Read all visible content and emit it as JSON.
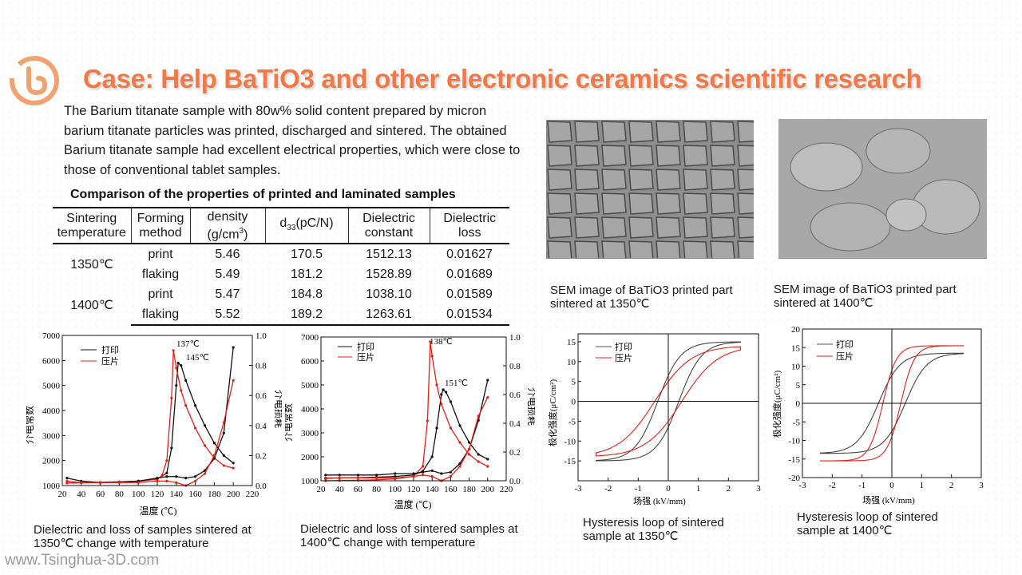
{
  "title": "Case: Help BaTiO3 and other electronic ceramics scientific research",
  "intro": "The Barium titanate sample with 80w% solid content prepared by micron barium titanate particles was printed, discharged and sintered. The obtained Barium titanate sample had excellent electrical properties, which were close to those of conventional tablet samples.",
  "table": {
    "caption": "Comparison of the properties of printed and laminated samples",
    "headers": {
      "h1a": "Sintering",
      "h1b": "temperature",
      "h2a": "Forming",
      "h2b": "method",
      "h3a": "density",
      "h3b": "(g/cm",
      "h3c": "3",
      "h3d": ")",
      "h4a": "d",
      "h4b": "33",
      "h4c": "(pC/N)",
      "h5a": "Dielectric",
      "h5b": "constant",
      "h6a": "Dielectric",
      "h6b": "loss"
    },
    "groups": [
      {
        "temp": "1350℃",
        "rows": [
          {
            "method": "print",
            "density": "5.46",
            "d33": "170.5",
            "constant": "1512.13",
            "loss": "0.01627"
          },
          {
            "method": "flaking",
            "density": "5.49",
            "d33": "181.2",
            "constant": "1528.89",
            "loss": "0.01689"
          }
        ]
      },
      {
        "temp": "1400℃",
        "rows": [
          {
            "method": "print",
            "density": "5.47",
            "d33": "184.8",
            "constant": "1038.10",
            "loss": "0.01589"
          },
          {
            "method": "flaking",
            "density": "5.52",
            "d33": "189.2",
            "constant": "1263.61",
            "loss": "0.01534"
          }
        ]
      }
    ]
  },
  "sem": {
    "cap1350": "SEM image of BaTiO3 printed part sintered at 1350℃",
    "cap1400": "SEM image of BaTiO3 printed part sintered at 1400℃"
  },
  "charts": {
    "diel_1350": {
      "legend_print": "打印",
      "legend_flake": "压片",
      "ylabel_left": "介电常数",
      "ylabel_right": "介电损耗",
      "xlabel": "温度 (℃)",
      "peak1": "137℃",
      "peak2": "145℃",
      "xticks": [
        "20",
        "40",
        "60",
        "80",
        "100",
        "120",
        "140",
        "160",
        "180",
        "200",
        "220"
      ],
      "yticks_left": [
        "1000",
        "2000",
        "3000",
        "4000",
        "5000",
        "6000",
        "7000"
      ],
      "yticks_right": [
        "0.0",
        "0.2",
        "0.4",
        "0.6",
        "0.8",
        "1.0"
      ],
      "caption": "Dielectric and loss of samples sintered at 1350℃ change with temperature"
    },
    "diel_1400": {
      "legend_print": "打印",
      "legend_flake": "压片",
      "ylabel_left": "介电常数",
      "ylabel_right": "介电损耗",
      "xlabel": "温度 (℃)",
      "peak1": "138℃",
      "peak2": "151℃",
      "xticks": [
        "20",
        "40",
        "60",
        "80",
        "100",
        "120",
        "140",
        "160",
        "180",
        "200",
        "220"
      ],
      "yticks_left": [
        "1000",
        "2000",
        "3000",
        "4000",
        "5000",
        "6000",
        "7000"
      ],
      "yticks_right": [
        "0.0",
        "0.2",
        "0.4",
        "0.6",
        "0.8",
        "1.0"
      ],
      "caption": "Dielectric and loss of sintered samples at 1400℃ change with temperature"
    },
    "hyst_1350": {
      "legend_print": "打印",
      "legend_flake": "压片",
      "ylabel": "极化强度(μC/cm²)",
      "xlabel": "场强 (kV/mm)",
      "xticks": [
        "-3",
        "-2",
        "-1",
        "0",
        "1",
        "2",
        "3"
      ],
      "yticks": [
        "-15",
        "-10",
        "-5",
        "0",
        "5",
        "10",
        "15"
      ],
      "caption": "Hysteresis loop of sintered sample at 1350℃"
    },
    "hyst_1400": {
      "legend_print": "打印",
      "legend_flake": "压片",
      "ylabel": "极化强度(μC/cm²)",
      "xlabel": "场强 (kV/mm)",
      "xticks": [
        "-3",
        "-2",
        "-1",
        "0",
        "1",
        "2",
        "3"
      ],
      "yticks": [
        "-20",
        "-15",
        "-10",
        "-5",
        "0",
        "5",
        "10",
        "15",
        "20"
      ],
      "caption": "Hysteresis loop of sintered sample at 1400℃"
    }
  },
  "footer": "www.Tsinghua-3D.com",
  "colors": {
    "accent": "#ef7a47",
    "print": "#111111",
    "flake": "#e0201b"
  },
  "chart_data": [
    {
      "type": "line",
      "xlim": [
        20,
        220
      ],
      "ylim": [
        1000,
        7000
      ],
      "y2lim": [
        0.0,
        1.0
      ],
      "series": [
        {
          "name": "打印",
          "axis": "left",
          "x": [
            25,
            40,
            60,
            80,
            100,
            120,
            130,
            135,
            140,
            142,
            145,
            150,
            160,
            170,
            180,
            190,
            200
          ],
          "y": [
            1100,
            1120,
            1130,
            1150,
            1180,
            1260,
            1500,
            2500,
            5000,
            5900,
            5800,
            5200,
            4200,
            3400,
            2700,
            2200,
            1900
          ]
        },
        {
          "name": "压片",
          "axis": "left",
          "x": [
            25,
            40,
            60,
            80,
            100,
            120,
            125,
            130,
            135,
            137,
            140,
            145,
            150,
            160,
            170,
            180,
            190,
            200
          ],
          "y": [
            1100,
            1110,
            1120,
            1140,
            1170,
            1250,
            1400,
            2000,
            4500,
            6400,
            5700,
            4800,
            4200,
            3300,
            2600,
            2100,
            1800,
            1700
          ]
        },
        {
          "name": "打印",
          "axis": "right",
          "x": [
            25,
            40,
            60,
            80,
            100,
            120,
            130,
            140,
            150,
            160,
            170,
            180,
            190,
            200
          ],
          "y": [
            0.05,
            0.03,
            0.02,
            0.02,
            0.03,
            0.05,
            0.06,
            0.06,
            0.05,
            0.06,
            0.1,
            0.18,
            0.35,
            0.92
          ]
        },
        {
          "name": "压片",
          "axis": "right",
          "x": [
            25,
            40,
            60,
            80,
            100,
            120,
            130,
            140,
            150,
            160,
            170,
            180,
            190,
            200
          ],
          "y": [
            0.03,
            0.02,
            0.02,
            0.02,
            0.02,
            0.03,
            0.03,
            0.02,
            0.0,
            0.03,
            0.08,
            0.2,
            0.42,
            0.7
          ]
        }
      ]
    },
    {
      "type": "line",
      "xlim": [
        20,
        220
      ],
      "ylim": [
        1000,
        7000
      ],
      "y2lim": [
        0.0,
        1.0
      ],
      "series": [
        {
          "name": "打印",
          "axis": "left",
          "x": [
            25,
            40,
            60,
            80,
            100,
            120,
            130,
            140,
            145,
            150,
            152,
            155,
            160,
            170,
            180,
            190,
            200
          ],
          "y": [
            1100,
            1120,
            1130,
            1150,
            1180,
            1240,
            1400,
            2000,
            3200,
            4600,
            4800,
            4700,
            4300,
            3300,
            2600,
            2100,
            1900
          ]
        },
        {
          "name": "压片",
          "axis": "left",
          "x": [
            25,
            40,
            60,
            80,
            100,
            120,
            130,
            135,
            138,
            140,
            145,
            150,
            160,
            170,
            180,
            190,
            200
          ],
          "y": [
            1000,
            1010,
            1020,
            1040,
            1080,
            1180,
            1600,
            3500,
            6800,
            6200,
            5000,
            4200,
            3200,
            2600,
            2100,
            1800,
            1600
          ]
        },
        {
          "name": "打印",
          "axis": "right",
          "x": [
            25,
            40,
            60,
            80,
            100,
            120,
            130,
            140,
            150,
            160,
            170,
            180,
            190,
            200
          ],
          "y": [
            0.04,
            0.04,
            0.04,
            0.04,
            0.05,
            0.05,
            0.06,
            0.07,
            0.05,
            0.06,
            0.12,
            0.22,
            0.42,
            0.7
          ]
        },
        {
          "name": "压片",
          "axis": "right",
          "x": [
            25,
            40,
            60,
            80,
            100,
            120,
            130,
            140,
            150,
            160,
            170,
            180,
            190,
            200
          ],
          "y": [
            0.02,
            0.02,
            0.02,
            0.02,
            0.02,
            0.03,
            0.04,
            0.03,
            0.0,
            0.03,
            0.1,
            0.22,
            0.45,
            0.58
          ]
        }
      ]
    },
    {
      "type": "line",
      "xlim": [
        -3,
        3
      ],
      "ylim": [
        -20,
        17
      ],
      "series": [
        {
          "name": "打印",
          "Ec": 0.35,
          "Pr": 6.5,
          "Ps": 15,
          "Emax": 2.4
        },
        {
          "name": "压片",
          "Ec": 0.45,
          "Pr": 5,
          "Ps": 14,
          "Emax": 2.4
        }
      ]
    },
    {
      "type": "line",
      "xlim": [
        -3,
        3
      ],
      "ylim": [
        -20,
        20
      ],
      "series": [
        {
          "name": "打印",
          "Ec": 0.45,
          "Pr": 7.5,
          "Ps": 13.5,
          "Emax": 2.4
        },
        {
          "name": "压片",
          "Ec": 0.3,
          "Pr": 9,
          "Ps": 15.5,
          "Emax": 2.4
        }
      ]
    }
  ]
}
